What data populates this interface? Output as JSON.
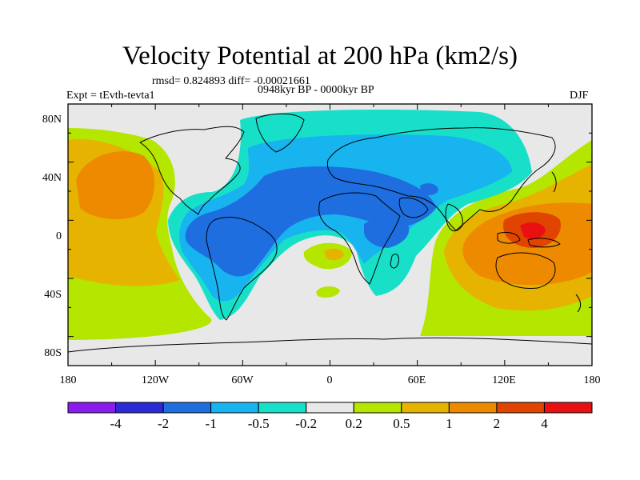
{
  "title": "Velocity Potential at 200 hPa (km2/s)",
  "stats": "rmsd= 0.824893 diff= -0.00021661",
  "experiment": "Expt = tEvth-tevta1",
  "period": "0948kyr BP - 0000kyr BP",
  "season": "DJF",
  "y_ticks": [
    "80N",
    "40N",
    "0",
    "40S",
    "80S"
  ],
  "x_ticks": [
    "180",
    "120W",
    "60W",
    "0",
    "60E",
    "120E",
    "180"
  ],
  "colorbar": {
    "labels": [
      "-4",
      "-2",
      "-1",
      "-0.5",
      "-0.2",
      "0.2",
      "0.5",
      "1",
      "2",
      "4"
    ],
    "colors": [
      "#8a1cf0",
      "#2a2ad8",
      "#1e6ee0",
      "#18b4f0",
      "#18e0c8",
      "#e8e8e8",
      "#b4e600",
      "#e6b400",
      "#ee8a00",
      "#e04400",
      "#e81010"
    ]
  },
  "map_data": {
    "projection": "cylindrical-equidistant",
    "lon_range": [
      -180,
      180
    ],
    "lat_range": [
      -90,
      90
    ],
    "field": "velocity potential anomaly at 200 hPa",
    "colors": {
      "neg3": "#1e6ee0",
      "neg2": "#18b4f0",
      "neg1": "#18e0c8",
      "zero": "#e8e8e8",
      "pos1": "#b4e600",
      "pos2": "#e6b400",
      "pos3": "#ee8a00",
      "pos4": "#e04400",
      "pos5": "#e81010"
    }
  }
}
